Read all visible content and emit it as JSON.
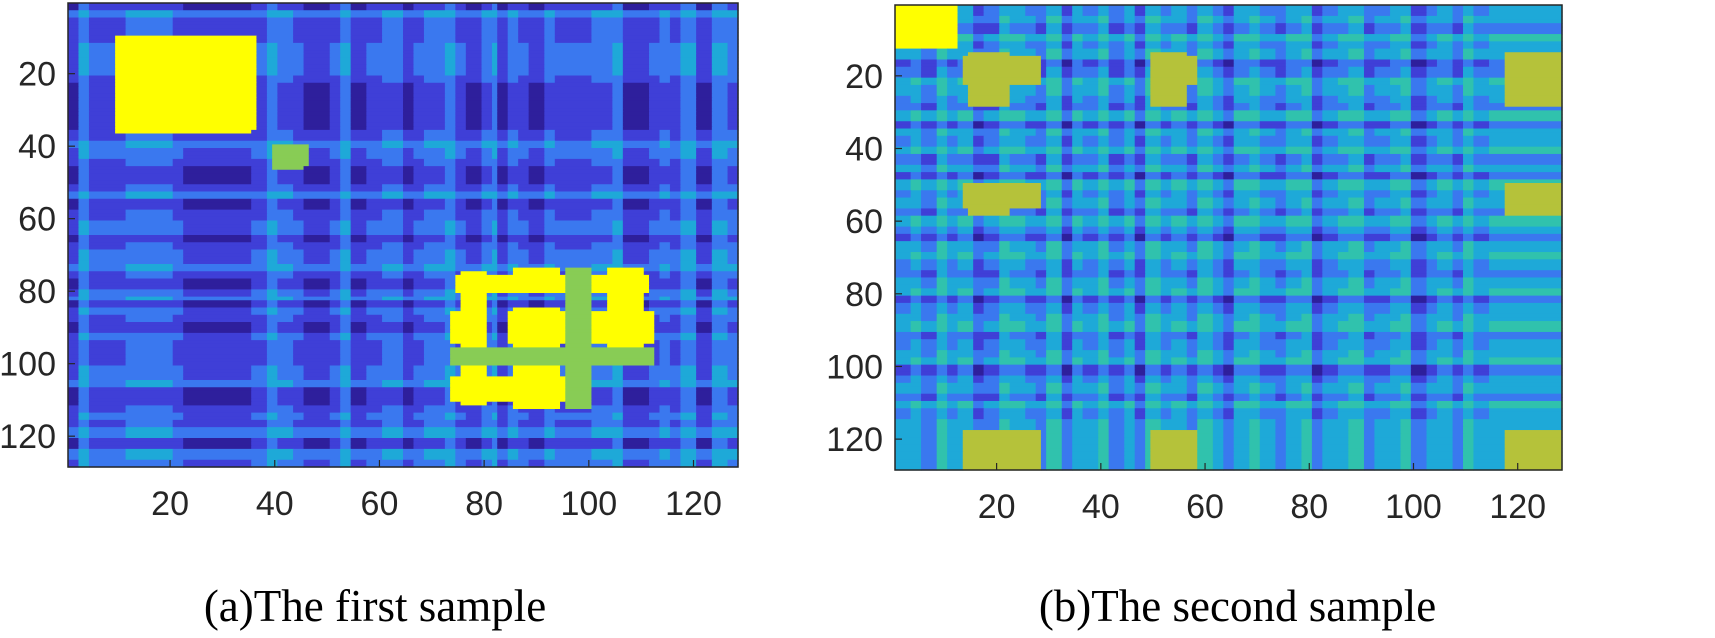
{
  "chart_data": [
    {
      "type": "heatmap",
      "title": "(a)The first sample",
      "xlabel": "",
      "ylabel": "",
      "xlim": [
        0.5,
        128.5
      ],
      "ylim": [
        0.5,
        128.5
      ],
      "xticks": [
        "20",
        "40",
        "60",
        "80",
        "100",
        "120"
      ],
      "yticks": [
        "20",
        "40",
        "60",
        "80",
        "100",
        "120"
      ],
      "colormap": "parula",
      "palette": [
        "#2e1f9c",
        "#3f3fd7",
        "#3a78ef",
        "#1ea9d8",
        "#30c2ad",
        "#88cc55",
        "#ffff00"
      ],
      "segments": [
        [
          2,
          0
        ],
        [
          2,
          3
        ],
        [
          7,
          1
        ],
        [
          9,
          2
        ],
        [
          2,
          1
        ],
        [
          10,
          0
        ],
        [
          3,
          0
        ],
        [
          3,
          1
        ],
        [
          2,
          3
        ],
        [
          3,
          2
        ],
        [
          2,
          1
        ],
        [
          5,
          0
        ],
        [
          2,
          1
        ],
        [
          2,
          3
        ],
        [
          3,
          0
        ],
        [
          3,
          1
        ],
        [
          4,
          2
        ],
        [
          2,
          0
        ],
        [
          2,
          1
        ],
        [
          4,
          2
        ],
        [
          2,
          3
        ],
        [
          2,
          1
        ],
        [
          3,
          0
        ],
        [
          2,
          2
        ],
        [
          1,
          3
        ],
        [
          2,
          0
        ],
        [
          2,
          2
        ],
        [
          2,
          1
        ],
        [
          3,
          0
        ],
        [
          2,
          2
        ],
        [
          7,
          1
        ],
        [
          4,
          2
        ],
        [
          2,
          3
        ],
        [
          5,
          0
        ],
        [
          2,
          1
        ],
        [
          2,
          2
        ],
        [
          2,
          1
        ],
        [
          3,
          3
        ],
        [
          3,
          0
        ],
        [
          3,
          3
        ],
        [
          2,
          2
        ],
        [
          2,
          1
        ],
        [
          6,
          0
        ]
      ],
      "blocks": [
        {
          "rows": [
            10,
            35
          ],
          "cols": [
            10,
            36
          ],
          "level": 6
        },
        {
          "rows": [
            76,
            80
          ],
          "cols": [
            75,
            111
          ],
          "level": 6
        },
        {
          "rows": [
            86,
            94
          ],
          "cols": [
            74,
            80
          ],
          "level": 6
        },
        {
          "rows": [
            86,
            94
          ],
          "cols": [
            85,
            96
          ],
          "level": 6
        },
        {
          "rows": [
            86,
            94
          ],
          "cols": [
            100,
            105
          ],
          "level": 6
        },
        {
          "rows": [
            86,
            94
          ],
          "cols": [
            108,
            112
          ],
          "level": 6
        },
        {
          "rows": [
            104,
            110
          ],
          "cols": [
            74,
            97
          ],
          "level": 6
        },
        {
          "rows": [
            96,
            100
          ],
          "cols": [
            74,
            112
          ],
          "level": 5
        },
        {
          "rows": [
            40,
            45
          ],
          "cols": [
            40,
            46
          ],
          "level": 5
        }
      ]
    },
    {
      "type": "heatmap",
      "title": "(b)The second sample",
      "xlabel": "",
      "ylabel": "",
      "xlim": [
        0.5,
        128.5
      ],
      "ylim": [
        0.5,
        128.5
      ],
      "xticks": [
        "20",
        "40",
        "60",
        "80",
        "100",
        "120"
      ],
      "yticks": [
        "20",
        "40",
        "60",
        "80",
        "100",
        "120"
      ],
      "colormap": "parula",
      "palette": [
        "#2e1f9c",
        "#3f3fd7",
        "#3a78ef",
        "#1ea9d8",
        "#30c2ad",
        "#b5c23a",
        "#ffff00"
      ],
      "segments": [
        [
          3,
          2
        ],
        [
          2,
          3
        ],
        [
          3,
          1
        ],
        [
          2,
          4
        ],
        [
          2,
          2
        ],
        [
          3,
          3
        ],
        [
          2,
          0
        ],
        [
          3,
          1
        ],
        [
          2,
          4
        ],
        [
          3,
          3
        ],
        [
          2,
          2
        ],
        [
          2,
          1
        ],
        [
          3,
          4
        ],
        [
          2,
          0
        ],
        [
          2,
          3
        ],
        [
          3,
          2
        ],
        [
          2,
          4
        ],
        [
          3,
          1
        ],
        [
          2,
          3
        ],
        [
          2,
          0
        ],
        [
          3,
          4
        ],
        [
          2,
          2
        ],
        [
          3,
          3
        ],
        [
          2,
          1
        ],
        [
          3,
          4
        ],
        [
          2,
          2
        ],
        [
          2,
          0
        ],
        [
          3,
          3
        ],
        [
          2,
          4
        ],
        [
          3,
          2
        ],
        [
          2,
          1
        ],
        [
          3,
          3
        ],
        [
          2,
          4
        ],
        [
          2,
          0
        ],
        [
          3,
          2
        ],
        [
          2,
          3
        ],
        [
          3,
          4
        ],
        [
          2,
          1
        ],
        [
          3,
          2
        ],
        [
          2,
          3
        ],
        [
          2,
          4
        ],
        [
          3,
          0
        ],
        [
          2,
          2
        ],
        [
          3,
          3
        ],
        [
          2,
          1
        ],
        [
          2,
          4
        ],
        [
          3,
          2
        ],
        [
          5,
          3
        ]
      ],
      "blocks": [
        {
          "rows": [
            1,
            12
          ],
          "cols": [
            1,
            12
          ],
          "level": 6
        },
        {
          "rows": [
            15,
            22
          ],
          "cols": [
            14,
            28
          ],
          "level": 5
        },
        {
          "rows": [
            50,
            56
          ],
          "cols": [
            14,
            28
          ],
          "level": 5
        },
        {
          "rows": [
            118,
            128
          ],
          "cols": [
            14,
            28
          ],
          "level": 5
        },
        {
          "rows": [
            15,
            22
          ],
          "cols": [
            118,
            128
          ],
          "level": 5
        },
        {
          "rows": [
            118,
            128
          ],
          "cols": [
            118,
            128
          ],
          "level": 5
        },
        {
          "rows": [
            50,
            56
          ],
          "cols": [
            118,
            128
          ],
          "level": 5
        },
        {
          "rows": [
            15,
            22
          ],
          "cols": [
            50,
            58
          ],
          "level": 5
        },
        {
          "rows": [
            118,
            128
          ],
          "cols": [
            50,
            58
          ],
          "level": 5
        }
      ]
    }
  ]
}
